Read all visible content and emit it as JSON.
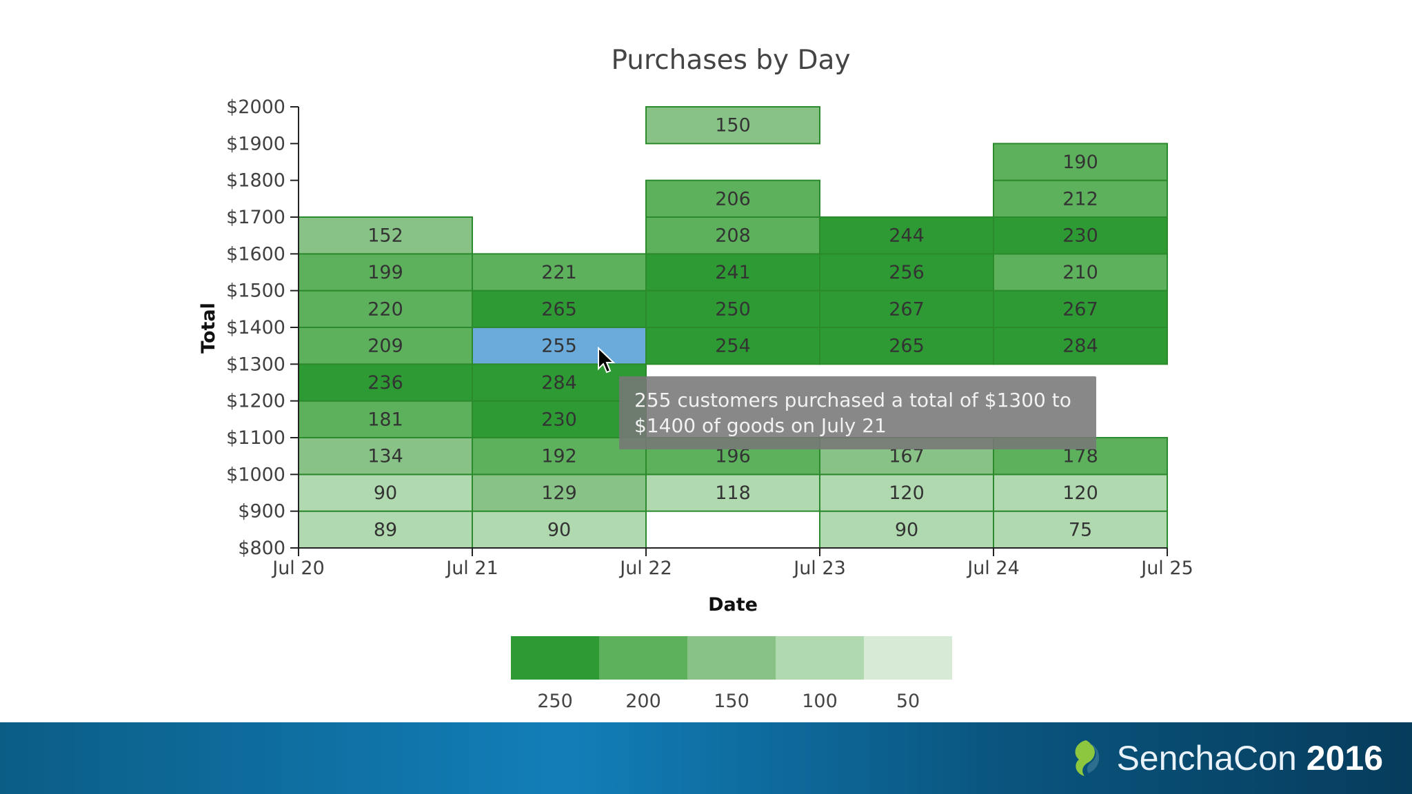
{
  "chart_data": {
    "type": "heatmap",
    "title": "Purchases by Day",
    "xlabel": "Date",
    "ylabel": "Total",
    "x_ticks": [
      "Jul 20",
      "Jul 21",
      "Jul 22",
      "Jul 23",
      "Jul 24",
      "Jul 25"
    ],
    "y_ticks": [
      "$800",
      "$900",
      "$1000",
      "$1100",
      "$1200",
      "$1300",
      "$1400",
      "$1500",
      "$1600",
      "$1700",
      "$1800",
      "$1900",
      "$2000"
    ],
    "ylim": [
      800,
      2000
    ],
    "bin_size": 100,
    "days": [
      {
        "date": "Jul 20",
        "cells": [
          {
            "bin": 800,
            "value": 89
          },
          {
            "bin": 900,
            "value": 90
          },
          {
            "bin": 1000,
            "value": 134
          },
          {
            "bin": 1100,
            "value": 181
          },
          {
            "bin": 1200,
            "value": 236
          },
          {
            "bin": 1300,
            "value": 209
          },
          {
            "bin": 1400,
            "value": 220
          },
          {
            "bin": 1500,
            "value": 199
          },
          {
            "bin": 1600,
            "value": 152
          }
        ]
      },
      {
        "date": "Jul 21",
        "cells": [
          {
            "bin": 800,
            "value": 90
          },
          {
            "bin": 900,
            "value": 129
          },
          {
            "bin": 1000,
            "value": 192
          },
          {
            "bin": 1100,
            "value": 230
          },
          {
            "bin": 1200,
            "value": 284
          },
          {
            "bin": 1300,
            "value": 255,
            "highlighted": true
          },
          {
            "bin": 1400,
            "value": 265
          },
          {
            "bin": 1500,
            "value": 221
          }
        ]
      },
      {
        "date": "Jul 22",
        "cells": [
          {
            "bin": 900,
            "value": 118
          },
          {
            "bin": 1000,
            "value": 196
          },
          {
            "bin": 1100,
            "value": null
          },
          {
            "bin": 1200,
            "value": null
          },
          {
            "bin": 1300,
            "value": 254
          },
          {
            "bin": 1400,
            "value": 250
          },
          {
            "bin": 1500,
            "value": 241
          },
          {
            "bin": 1600,
            "value": 208
          },
          {
            "bin": 1700,
            "value": 206
          },
          {
            "bin": 1900,
            "value": 150
          }
        ]
      },
      {
        "date": "Jul 23",
        "cells": [
          {
            "bin": 800,
            "value": 90
          },
          {
            "bin": 900,
            "value": 120
          },
          {
            "bin": 1000,
            "value": 167
          },
          {
            "bin": 1100,
            "value": null
          },
          {
            "bin": 1200,
            "value": null
          },
          {
            "bin": 1300,
            "value": 265
          },
          {
            "bin": 1400,
            "value": 267
          },
          {
            "bin": 1500,
            "value": 256
          },
          {
            "bin": 1600,
            "value": 244
          }
        ]
      },
      {
        "date": "Jul 24",
        "cells": [
          {
            "bin": 800,
            "value": 75
          },
          {
            "bin": 900,
            "value": 120
          },
          {
            "bin": 1000,
            "value": 178
          },
          {
            "bin": 1100,
            "value": null
          },
          {
            "bin": 1200,
            "value": null
          },
          {
            "bin": 1300,
            "value": 284
          },
          {
            "bin": 1400,
            "value": 267
          },
          {
            "bin": 1500,
            "value": 210
          },
          {
            "bin": 1600,
            "value": 230
          },
          {
            "bin": 1700,
            "value": 212
          },
          {
            "bin": 1800,
            "value": 190
          }
        ]
      }
    ],
    "color_scale": {
      "stops": [
        50,
        100,
        150,
        200,
        250
      ],
      "colors": [
        "#d6ead5",
        "#b0d9af",
        "#88c286",
        "#5db05c",
        "#2e9a33"
      ],
      "highlight_color": "#6aabdc",
      "legend_order": [
        250,
        200,
        150,
        100,
        50
      ]
    },
    "legend_labels": [
      "250",
      "200",
      "150",
      "100",
      "50"
    ],
    "tooltip": "255 customers purchased a total of $1300 to $1400 of goods on July 21"
  },
  "footer": {
    "brand_name": "SenchaCon",
    "brand_year": "2016",
    "logo_icon": "sencha-leaf-icon",
    "background_color": "#127eb8"
  }
}
